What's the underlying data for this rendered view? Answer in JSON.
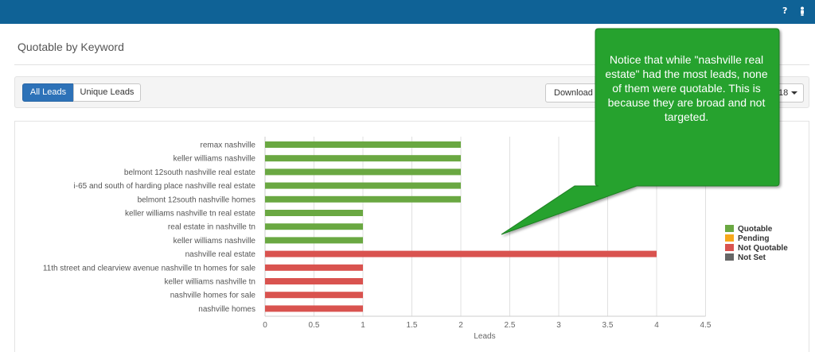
{
  "topbar": {
    "help_icon": "?",
    "user_icon": "person-icon"
  },
  "page_title": "Quotable by Keyword",
  "toolbar": {
    "all_leads_label": "All Leads",
    "unique_leads_label": "Unique Leads",
    "download_label": "Download R",
    "year_label": "18"
  },
  "callout": {
    "text": "Notice that while \"nashville real estate\" had the most leads, none of them were quotable. This is because they are broad and not targeted."
  },
  "colors": {
    "topbar": "#0f6296",
    "quotable": "#6aa842",
    "pending": "#f7a81b",
    "not_quotable": "#d9534f",
    "not_set": "#666666",
    "callout": "#27a22d"
  },
  "chart_data": {
    "type": "bar",
    "orientation": "horizontal",
    "categories": [
      "remax nashville",
      "keller williams nashville",
      "belmont 12south nashville real estate",
      "i-65 and south of harding place nashville real estate",
      "belmont 12south nashville homes",
      "keller williams nashville tn real estate",
      "real estate in nashville tn",
      "keller williams nashville",
      "nashville real estate",
      "11th street and clearview avenue nashville tn homes for sale",
      "keller williams nashville tn",
      "nashville homes for sale",
      "nashville homes"
    ],
    "values": [
      2,
      2,
      2,
      2,
      2,
      1,
      1,
      1,
      4,
      1,
      1,
      1,
      1
    ],
    "status": [
      "Quotable",
      "Quotable",
      "Quotable",
      "Quotable",
      "Quotable",
      "Quotable",
      "Quotable",
      "Quotable",
      "Not Quotable",
      "Not Quotable",
      "Not Quotable",
      "Not Quotable",
      "Not Quotable"
    ],
    "legend": [
      "Quotable",
      "Pending",
      "Not Quotable",
      "Not Set"
    ],
    "legend_position": "right",
    "xlabel": "Leads",
    "ylabel": "",
    "xlim": [
      0,
      4.5
    ],
    "xticks": [
      0,
      0.5,
      1,
      1.5,
      2,
      2.5,
      3,
      3.5,
      4,
      4.5
    ],
    "grid": true
  }
}
